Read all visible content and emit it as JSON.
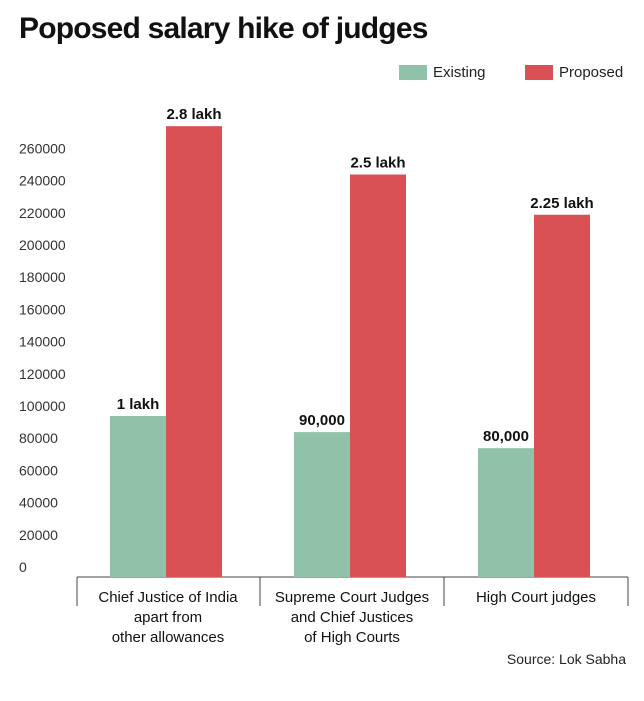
{
  "title": "Poposed salary hike of judges",
  "source": "Source: Lok Sabha",
  "chart_data": {
    "type": "bar",
    "categories": [
      [
        "Chief Justice of India",
        "apart from",
        "other allowances"
      ],
      [
        "Supreme Court Judges",
        "and Chief Justices",
        "of High Courts"
      ],
      [
        "High Court judges"
      ]
    ],
    "series": [
      {
        "name": "Existing",
        "color": "#8fc2a8",
        "values": [
          100000,
          90000,
          80000
        ],
        "labels": [
          "1 lakh",
          "90,000",
          "80,000"
        ]
      },
      {
        "name": "Proposed",
        "color": "#d95055",
        "values": [
          280000,
          250000,
          225000
        ],
        "labels": [
          "2.8 lakh",
          "2.5 lakh",
          "2.25 lakh"
        ]
      }
    ],
    "yticks": [
      0,
      20000,
      40000,
      60000,
      80000,
      100000,
      120000,
      140000,
      160000,
      180000,
      200000,
      220000,
      240000,
      260000
    ],
    "ylim": [
      0,
      280000
    ],
    "xlabel": "",
    "ylabel": "",
    "grid": false,
    "legend_position": "top-right"
  }
}
